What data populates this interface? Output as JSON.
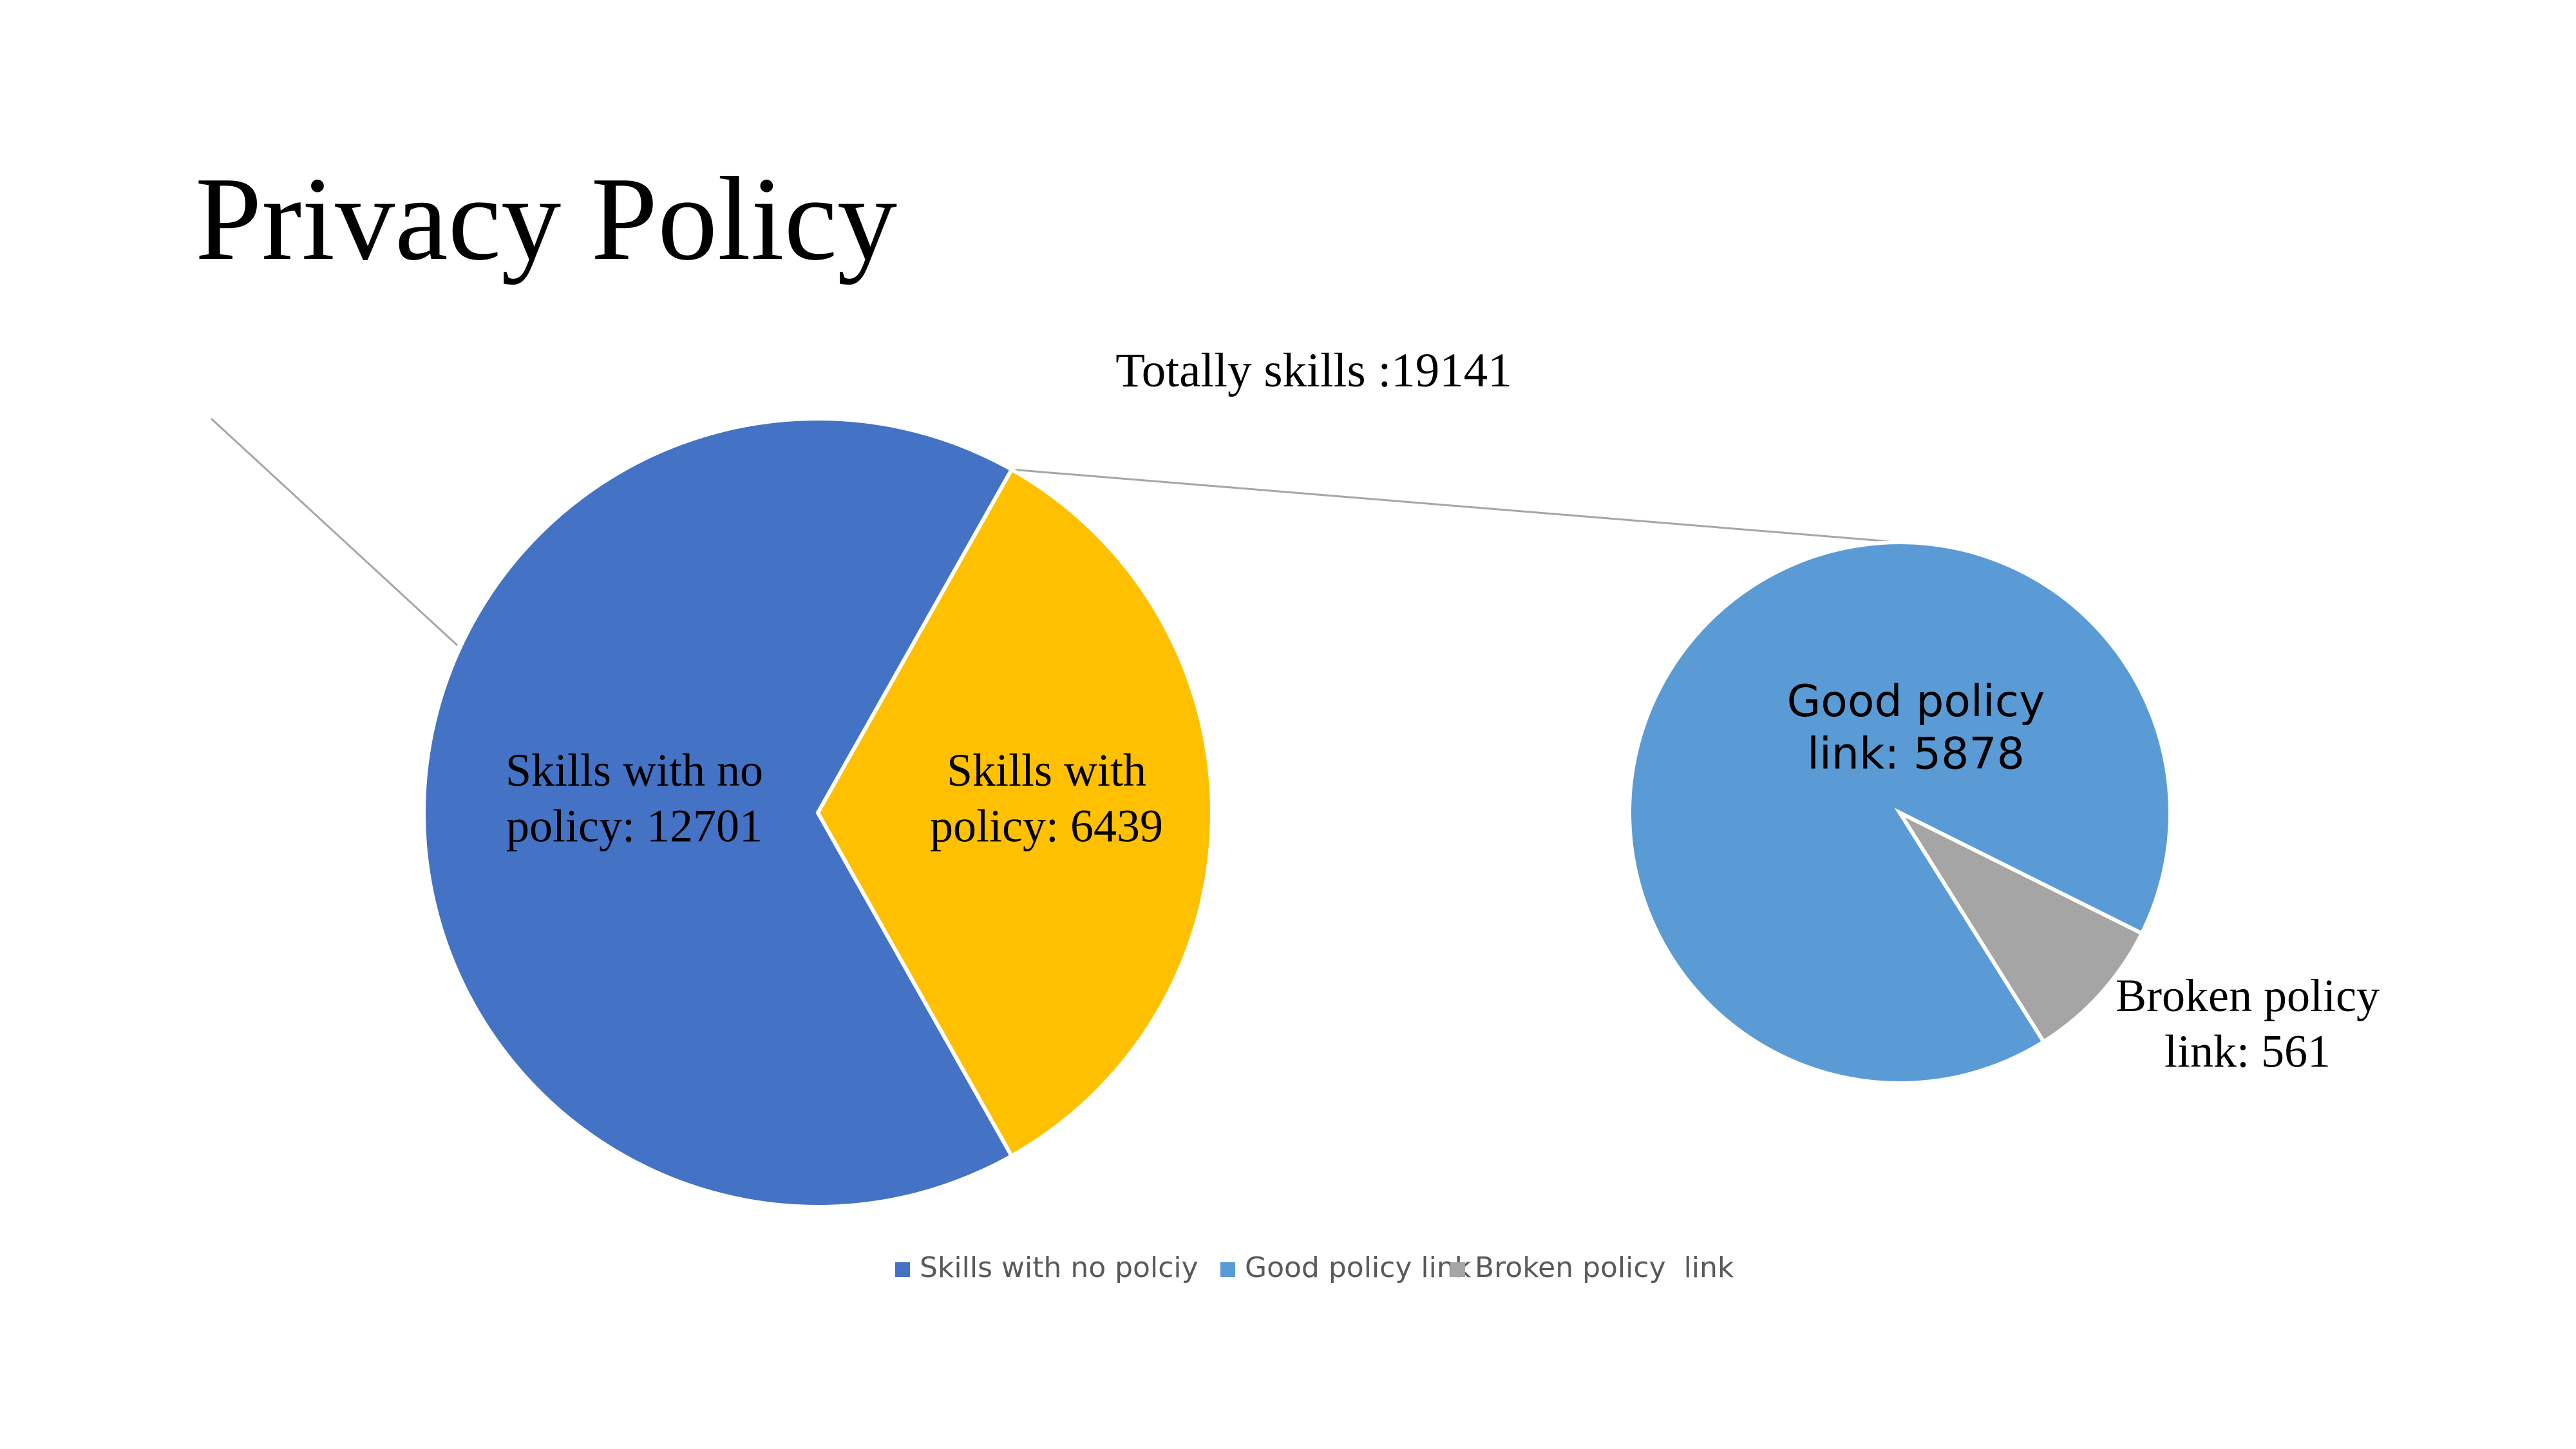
{
  "slide": {
    "title": "Privacy Policy"
  },
  "chart_data": {
    "type": "pie",
    "subtype": "pie-of-pie",
    "title": "Totally skills :19141",
    "main_pie": {
      "slices": [
        {
          "name": "Skills with no policy",
          "value": 12701,
          "color": "#4472C4",
          "label_lines": [
            "Skills with no",
            "policy: 12701"
          ]
        },
        {
          "name": "Skills with policy",
          "value": 6439,
          "color": "#FFC000",
          "label_lines": [
            "Skills with",
            "policy: 6439"
          ]
        }
      ]
    },
    "secondary_pie": {
      "slices": [
        {
          "name": "Good policy link",
          "value": 5878,
          "color": "#5B9BD5",
          "label_lines": [
            "Good  policy",
            "link:  5878"
          ]
        },
        {
          "name": "Broken policy link",
          "value": 561,
          "color": "#A5A5A5",
          "label_lines": [
            "Broken policy",
            "link: 561"
          ]
        }
      ]
    },
    "legend": {
      "placement": "bottom",
      "items": [
        {
          "label": "Skills with no polciy",
          "color": "#4472C4"
        },
        {
          "label": "Good policy link",
          "color": "#5B9BD5"
        },
        {
          "label": "Broken policy  link",
          "color": "#A5A5A5"
        }
      ]
    }
  }
}
